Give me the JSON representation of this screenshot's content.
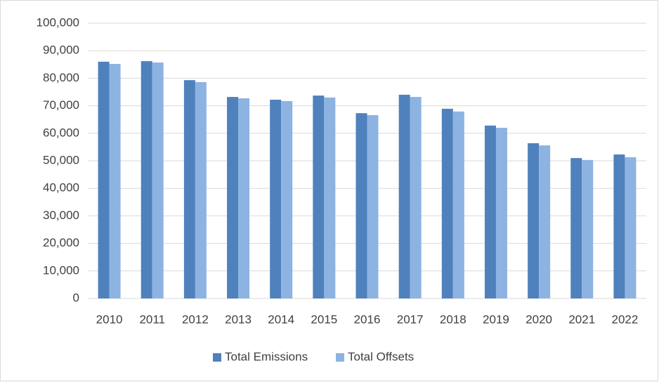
{
  "chart_data": {
    "type": "bar",
    "categories": [
      "2010",
      "2011",
      "2012",
      "2013",
      "2014",
      "2015",
      "2016",
      "2017",
      "2018",
      "2019",
      "2020",
      "2021",
      "2022"
    ],
    "series": [
      {
        "name": "Total Emissions",
        "color": "#4f81bd",
        "values": [
          86000,
          86200,
          79300,
          73200,
          72200,
          73700,
          67300,
          74000,
          68900,
          62800,
          56400,
          51000,
          52300
        ]
      },
      {
        "name": "Total Offsets",
        "color": "#8db3e2",
        "values": [
          85200,
          85700,
          78600,
          72700,
          71700,
          73000,
          66600,
          73200,
          67900,
          62000,
          55600,
          50300,
          51300
        ]
      }
    ],
    "ylim": [
      0,
      100000
    ],
    "yticks": [
      0,
      {
        "value": 10000,
        "label": "10,000"
      },
      {
        "value": 20000,
        "label": "20,000"
      },
      {
        "value": 30000,
        "label": "30,000"
      },
      {
        "value": 40000,
        "label": "40,000"
      },
      {
        "value": 50000,
        "label": "50,000"
      },
      {
        "value": 60000,
        "label": "60,000"
      },
      {
        "value": 70000,
        "label": "70,000"
      },
      {
        "value": 80000,
        "label": "80,000"
      },
      {
        "value": 90000,
        "label": "90,000"
      },
      {
        "value": 100000,
        "label": "100,000"
      }
    ],
    "grid": true,
    "legend": "bottom"
  }
}
